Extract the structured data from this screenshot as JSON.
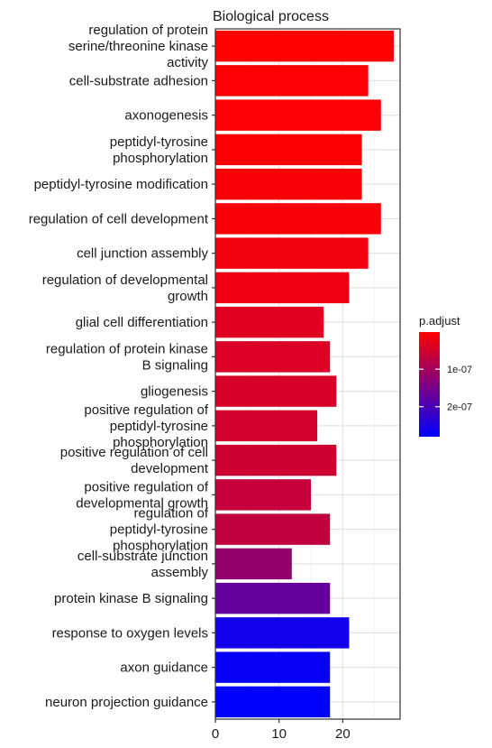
{
  "chart_data": {
    "type": "bar",
    "orientation": "horizontal",
    "title": "Biological process",
    "xlabel": "",
    "ylabel": "",
    "xlim": [
      0,
      29
    ],
    "x_ticks": [
      0,
      10,
      20
    ],
    "grid": true,
    "categories": [
      [
        "regulation of protein",
        "serine/threonine kinase",
        "activity"
      ],
      [
        "cell-substrate adhesion"
      ],
      [
        "axonogenesis"
      ],
      [
        "peptidyl-tyrosine",
        "phosphorylation"
      ],
      [
        "peptidyl-tyrosine modification"
      ],
      [
        "regulation of cell development"
      ],
      [
        "cell junction assembly"
      ],
      [
        "regulation of developmental",
        "growth"
      ],
      [
        "glial cell differentiation"
      ],
      [
        "regulation of protein kinase",
        "B signaling"
      ],
      [
        "gliogenesis"
      ],
      [
        "positive regulation of",
        "peptidyl-tyrosine",
        "phosphorylation"
      ],
      [
        "positive regulation of cell",
        "development"
      ],
      [
        "positive regulation of",
        "developmental growth"
      ],
      [
        "regulation of",
        "peptidyl-tyrosine",
        "phosphorylation"
      ],
      [
        "cell-substrate junction",
        "assembly"
      ],
      [
        "protein kinase B signaling"
      ],
      [
        "response to oxygen levels"
      ],
      [
        "axon guidance"
      ],
      [
        "neuron projection guidance"
      ]
    ],
    "values": [
      28,
      24,
      26,
      23,
      23,
      26,
      24,
      21,
      17,
      18,
      19,
      16,
      19,
      15,
      18,
      12,
      18,
      21,
      18,
      18
    ],
    "p_adjust": [
      2e-09,
      4e-09,
      5e-09,
      7e-09,
      8e-09,
      1e-08,
      1.5e-08,
      2e-08,
      3.5e-08,
      4e-08,
      4.5e-08,
      5e-08,
      5.5e-08,
      6.5e-08,
      7e-08,
      1.2e-07,
      1.7e-07,
      2.6e-07,
      2.7e-07,
      2.8e-07
    ],
    "legend": {
      "title": "p.adjust",
      "placement": "right",
      "ticks": [
        {
          "value": 1e-07,
          "label": "1e-07"
        },
        {
          "value": 2e-07,
          "label": "2e-07"
        }
      ],
      "range": [
        1e-09,
        2.8e-07
      ],
      "color_low": "#ff0000",
      "color_high": "#0000ff"
    }
  }
}
